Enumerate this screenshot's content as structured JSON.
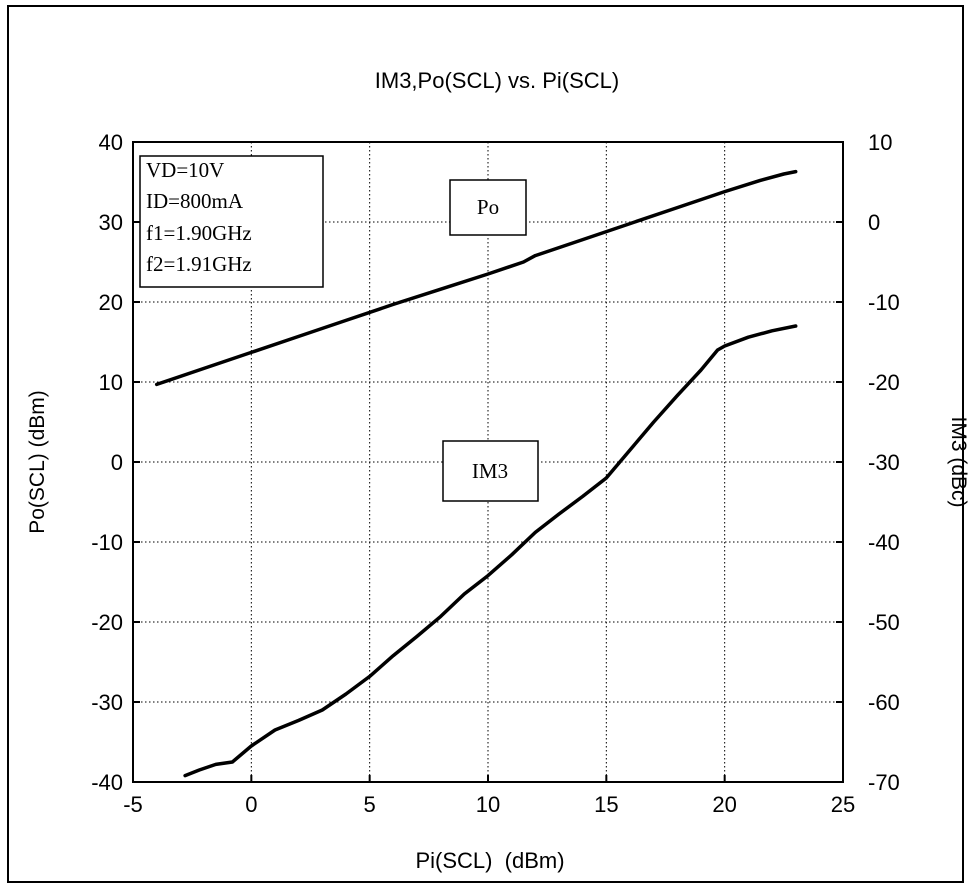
{
  "chart_data": {
    "type": "line",
    "title": "IM3,Po(SCL) vs. Pi(SCL)",
    "xlabel": "Pi(SCL)  (dBm)",
    "ylabel": "Po(SCL) (dBm)",
    "y2label": "IM3 (dBc)",
    "xlim": [
      -5,
      25
    ],
    "ylim": [
      -40,
      40
    ],
    "y2lim": [
      -70,
      10
    ],
    "x_ticks": [
      "-5",
      "0",
      "5",
      "10",
      "15",
      "20",
      "25"
    ],
    "y_ticks": [
      "40",
      "30",
      "20",
      "10",
      "0",
      "-10",
      "-20",
      "-30",
      "-40"
    ],
    "y2_ticks": [
      "10",
      "0",
      "-10",
      "-20",
      "-30",
      "-40",
      "-50",
      "-60",
      "-70"
    ],
    "grid": true,
    "conditions": [
      "VD=10V",
      "ID=800mA",
      "f1=1.90GHz",
      "f2=1.91GHz"
    ],
    "series": [
      {
        "name": "Po",
        "axis": "left",
        "x": [
          -4,
          -2,
          0,
          2,
          4,
          6,
          8,
          10,
          11.5,
          12,
          14,
          16,
          18,
          20,
          21.5,
          22.5,
          23
        ],
        "y": [
          9.7,
          11.7,
          13.7,
          15.7,
          17.7,
          19.7,
          21.6,
          23.5,
          25.0,
          25.8,
          27.8,
          29.8,
          31.8,
          33.8,
          35.2,
          36.0,
          36.3
        ]
      },
      {
        "name": "IM3",
        "axis": "right",
        "x": [
          -2.8,
          -2.2,
          -1.5,
          -0.8,
          0,
          1,
          2,
          3,
          4,
          5,
          6,
          7,
          8,
          9,
          10,
          11,
          12,
          13,
          14,
          15,
          16,
          17,
          18,
          19,
          19.7,
          20,
          21,
          22,
          23
        ],
        "y": [
          -69.2,
          -68.5,
          -67.8,
          -67.5,
          -65.5,
          -63.5,
          -62.3,
          -61,
          -59,
          -56.8,
          -54.2,
          -51.8,
          -49.3,
          -46.5,
          -44.2,
          -41.6,
          -38.8,
          -36.5,
          -34.3,
          -32,
          -28.5,
          -25,
          -21.7,
          -18.5,
          -16,
          -15.5,
          -14.4,
          -13.6,
          -13
        ]
      }
    ],
    "annotations": [
      "Po",
      "IM3"
    ]
  }
}
